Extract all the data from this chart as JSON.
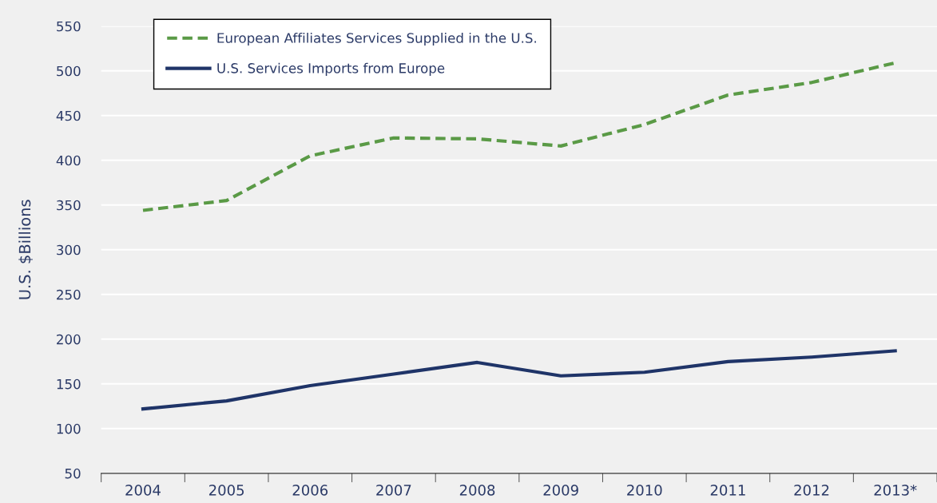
{
  "chart_data": {
    "type": "line",
    "ylabel": "U.S. $Billions",
    "categories": [
      "2004",
      "2005",
      "2006",
      "2007",
      "2008",
      "2009",
      "2010",
      "2011",
      "2012",
      "2013*"
    ],
    "series": [
      {
        "name": "European Affiliates Services Supplied in the U.S.",
        "color": "#5a9a46",
        "line_style": "dashed",
        "values": [
          344,
          355,
          405,
          425,
          424,
          416,
          440,
          473,
          487,
          509
        ]
      },
      {
        "name": "U.S. Services Imports from Europe",
        "color": "#1f3468",
        "line_style": "solid",
        "values": [
          122,
          131,
          148,
          161,
          174,
          159,
          163,
          175,
          180,
          187
        ]
      }
    ],
    "ylim": [
      50,
      550
    ],
    "yticks": [
      50,
      100,
      150,
      200,
      250,
      300,
      350,
      400,
      450,
      500,
      550
    ],
    "grid": "y",
    "legend": "top left",
    "marker": "none"
  }
}
